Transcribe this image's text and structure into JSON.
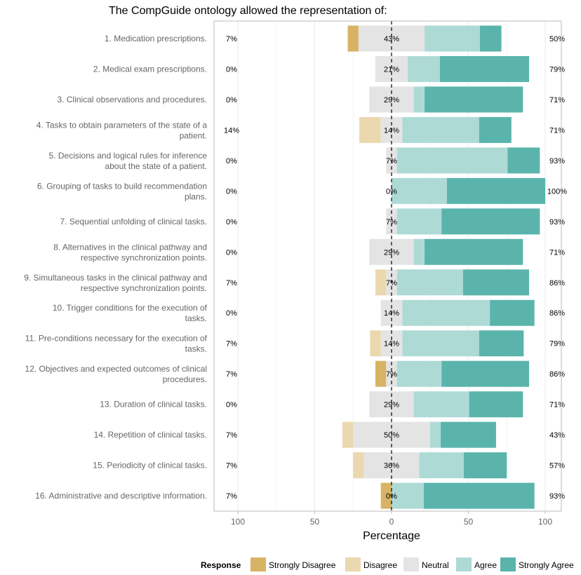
{
  "chart_data": {
    "type": "bar",
    "title": "The CompGuide ontology allowed the representation of:",
    "xlabel": "Percentage",
    "ylabel": "",
    "xlim": [
      -115,
      100
    ],
    "x_ticks": [
      -100,
      -50,
      0,
      50,
      100
    ],
    "x_tick_labels": [
      "100",
      "50",
      "0",
      "50",
      "100"
    ],
    "grid": true,
    "legend_position": "bottom",
    "legend_title": "Response",
    "categories": [
      [
        "1. Medication prescriptions."
      ],
      [
        "2. Medical exam prescriptions."
      ],
      [
        "3. Clinical observations and procedures."
      ],
      [
        "4. Tasks to obtain parameters of the state of a",
        "patient."
      ],
      [
        "5. Decisions and logical rules for inference",
        "about the state of a patient."
      ],
      [
        "6. Grouping of tasks to build recommendation",
        "plans."
      ],
      [
        "7. Sequential unfolding of clinical tasks."
      ],
      [
        "8. Alternatives in the clinical pathway and",
        "respective synchronization points."
      ],
      [
        "9. Simultaneous tasks in the clinical pathway and",
        "respective synchronization points."
      ],
      [
        "10. Trigger conditions for the execution of",
        "tasks."
      ],
      [
        "11. Pre-conditions necessary for the execution of",
        "tasks."
      ],
      [
        "12. Objectives and expected outcomes of clinical",
        "procedures."
      ],
      [
        "13. Duration of clinical tasks."
      ],
      [
        "14. Repetition of clinical tasks."
      ],
      [
        "15. Periodicity of clinical tasks."
      ],
      [
        "16. Administrative and descriptive information."
      ]
    ],
    "series": [
      {
        "name": "Strongly Disagree",
        "color": "#d8b365",
        "values": [
          7,
          0,
          0,
          0,
          0,
          0,
          0,
          0,
          0,
          0,
          0,
          7,
          0,
          0,
          0,
          7
        ]
      },
      {
        "name": "Disagree",
        "color": "#ebd8ae",
        "values": [
          0,
          0,
          0,
          14,
          0,
          0,
          0,
          0,
          7,
          0,
          7,
          0,
          0,
          7,
          7,
          0
        ]
      },
      {
        "name": "Neutral",
        "color": "#e4e4e4",
        "values": [
          43,
          21,
          29,
          14,
          7,
          0,
          7,
          29,
          7,
          14,
          14,
          7,
          29,
          50,
          36,
          0
        ]
      },
      {
        "name": "Agree",
        "color": "#aedad6",
        "values": [
          36,
          21,
          7,
          50,
          72,
          36,
          29,
          7,
          43,
          57,
          50,
          29,
          36,
          7,
          29,
          21
        ]
      },
      {
        "name": "Strongly Agree",
        "color": "#5ab4ac",
        "values": [
          14,
          58,
          64,
          21,
          21,
          64,
          64,
          64,
          43,
          29,
          29,
          57,
          35,
          36,
          28,
          72
        ]
      }
    ],
    "left_labels": [
      "7%",
      "0%",
      "0%",
      "14%",
      "0%",
      "0%",
      "0%",
      "0%",
      "7%",
      "0%",
      "7%",
      "7%",
      "0%",
      "7%",
      "7%",
      "7%"
    ],
    "center_labels": [
      "43%",
      "21%",
      "29%",
      "14%",
      "7%",
      "0%",
      "7%",
      "29%",
      "7%",
      "14%",
      "14%",
      "7%",
      "29%",
      "50%",
      "36%",
      "0%"
    ],
    "right_labels": [
      "50%",
      "79%",
      "71%",
      "71%",
      "93%",
      "100%",
      "93%",
      "71%",
      "86%",
      "86%",
      "79%",
      "86%",
      "71%",
      "43%",
      "57%",
      "93%"
    ]
  }
}
